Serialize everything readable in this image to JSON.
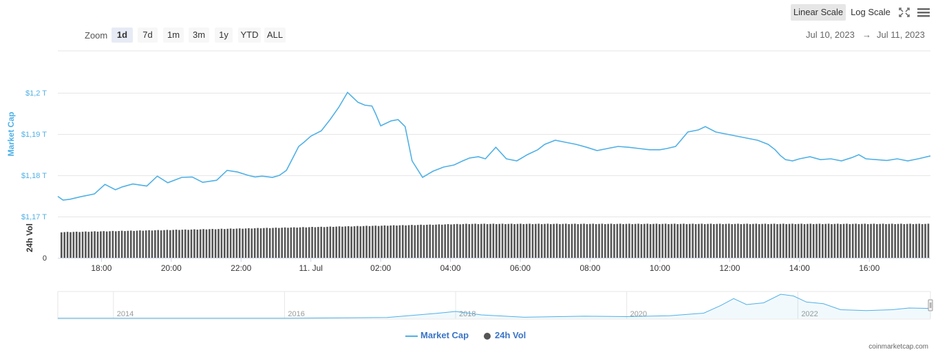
{
  "toolbar": {
    "zoom_label": "Zoom",
    "zoom_buttons": [
      "1d",
      "7d",
      "1m",
      "3m",
      "1y",
      "YTD",
      "ALL"
    ],
    "active_zoom": "1d",
    "date_from": "Jul 10, 2023",
    "date_arrow": "→",
    "date_to": "Jul 11, 2023",
    "linear_scale": "Linear Scale",
    "log_scale": "Log Scale",
    "active_scale": "Linear Scale",
    "fullscreen_icon": "fullscreen-icon",
    "menu_icon": "hamburger-menu-icon"
  },
  "colors": {
    "market_cap": "#4fb0e6",
    "volume": "#555555",
    "axis_text": "#333333",
    "accent_label": "#4fb0e6"
  },
  "chart_data": [
    {
      "type": "line",
      "title": "",
      "ylabel": "Market Cap",
      "ylim": [
        1.17,
        1.2
      ],
      "y_ticks": [
        "$1,17 T",
        "$1,18 T",
        "$1,19 T",
        "$1,2 T"
      ],
      "y_tick_values": [
        1.17,
        1.18,
        1.19,
        1.2
      ],
      "x_ticks": [
        "18:00",
        "20:00",
        "22:00",
        "11. Jul",
        "02:00",
        "04:00",
        "06:00",
        "08:00",
        "10:00",
        "12:00",
        "14:00",
        "16:00"
      ],
      "x_tick_hours": [
        18,
        20,
        22,
        24,
        26,
        28,
        30,
        32,
        34,
        36,
        38,
        40
      ],
      "xlim_hours": [
        16.75,
        41.75
      ],
      "series": [
        {
          "name": "Market Cap",
          "x_hours": [
            16.75,
            16.9,
            17.1,
            17.4,
            17.8,
            18.1,
            18.4,
            18.6,
            18.9,
            19.3,
            19.6,
            19.9,
            20.3,
            20.6,
            20.9,
            21.3,
            21.6,
            21.9,
            22.2,
            22.4,
            22.6,
            22.9,
            23.1,
            23.3,
            23.5,
            23.65,
            23.8,
            24.0,
            24.3,
            24.55,
            24.8,
            25.05,
            25.35,
            25.55,
            25.75,
            25.85,
            26.0,
            26.3,
            26.5,
            26.7,
            26.9,
            27.2,
            27.5,
            27.8,
            28.1,
            28.35,
            28.55,
            28.8,
            29.0,
            29.3,
            29.6,
            29.9,
            30.2,
            30.5,
            30.7,
            31.0,
            31.3,
            31.6,
            31.9,
            32.2,
            32.5,
            32.8,
            33.1,
            33.4,
            33.7,
            34.0,
            34.2,
            34.45,
            34.6,
            34.8,
            35.1,
            35.3,
            35.6,
            35.9,
            36.2,
            36.5,
            36.8,
            37.1,
            37.3,
            37.45,
            37.6,
            37.8,
            38.0,
            38.3,
            38.6,
            38.9,
            39.2,
            39.5,
            39.7,
            39.9,
            40.2,
            40.5,
            40.8,
            41.1,
            41.4,
            41.75
          ],
          "values": [
            1.1749,
            1.174,
            1.1742,
            1.1748,
            1.1755,
            1.1778,
            1.1765,
            1.1772,
            1.1779,
            1.1774,
            1.1798,
            1.1782,
            1.1795,
            1.1796,
            1.1783,
            1.1788,
            1.1812,
            1.1808,
            1.18,
            1.1796,
            1.1798,
            1.1795,
            1.18,
            1.1812,
            1.1845,
            1.187,
            1.188,
            1.1895,
            1.1908,
            1.1935,
            1.1965,
            1.2001,
            1.1977,
            1.197,
            1.1968,
            1.195,
            1.192,
            1.1932,
            1.1935,
            1.1918,
            1.1835,
            1.1795,
            1.181,
            1.182,
            1.1825,
            1.1835,
            1.1842,
            1.1845,
            1.184,
            1.1868,
            1.184,
            1.1835,
            1.185,
            1.1862,
            1.1875,
            1.1885,
            1.188,
            1.1875,
            1.1868,
            1.186,
            1.1865,
            1.187,
            1.1868,
            1.1865,
            1.1862,
            1.1862,
            1.1865,
            1.187,
            1.1885,
            1.1905,
            1.191,
            1.1918,
            1.1905,
            1.19,
            1.1895,
            1.189,
            1.1885,
            1.1875,
            1.1862,
            1.1848,
            1.1838,
            1.1835,
            1.184,
            1.1845,
            1.1838,
            1.184,
            1.1835,
            1.1843,
            1.185,
            1.184,
            1.1838,
            1.1836,
            1.184,
            1.1835,
            1.184,
            1.1847
          ]
        }
      ]
    },
    {
      "type": "bar",
      "ylabel": "24h Vol",
      "y_ticks": [
        "0"
      ],
      "series": [
        {
          "name": "24h Vol",
          "trend": "gradually rising from start to around 02:00, then roughly flat"
        }
      ]
    },
    {
      "type": "area",
      "title": "",
      "x_ticks": [
        "2014",
        "2016",
        "2018",
        "2020",
        "2022"
      ],
      "x_tick_years": [
        2014,
        2016,
        2018,
        2020,
        2022
      ],
      "xlim_years": [
        2013.35,
        2023.55
      ],
      "series": [
        {
          "name": "Market Cap (navigator)",
          "x_years": [
            2013.35,
            2014.5,
            2016.0,
            2017.2,
            2017.8,
            2018.0,
            2018.3,
            2018.8,
            2019.5,
            2020.0,
            2020.5,
            2020.9,
            2021.1,
            2021.25,
            2021.4,
            2021.6,
            2021.8,
            2021.95,
            2022.1,
            2022.3,
            2022.5,
            2022.8,
            2023.1,
            2023.3,
            2023.55
          ],
          "values": [
            0.01,
            0.01,
            0.01,
            0.1,
            0.6,
            0.8,
            0.4,
            0.13,
            0.25,
            0.2,
            0.3,
            0.6,
            1.5,
            2.3,
            1.6,
            1.8,
            2.8,
            2.6,
            1.9,
            1.7,
            1.0,
            0.9,
            1.0,
            1.2,
            1.15
          ]
        }
      ]
    }
  ],
  "legend": {
    "market_cap": "Market Cap",
    "volume": "24h Vol"
  },
  "credit": "coinmarketcap.com"
}
